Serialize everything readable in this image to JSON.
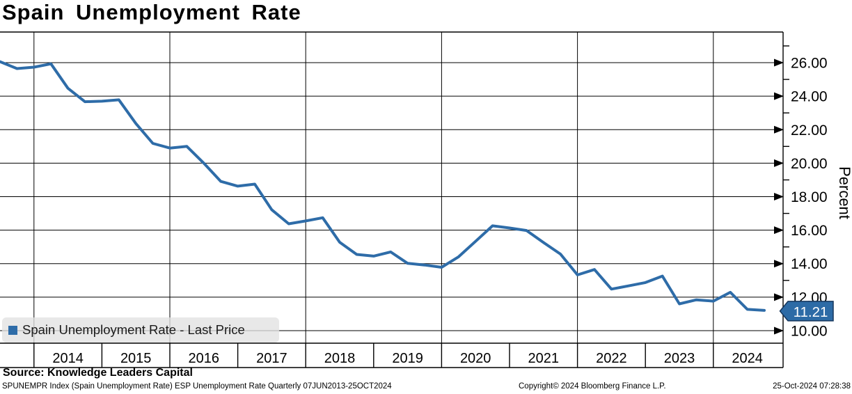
{
  "header": {
    "title": "Spain Unemployment Rate"
  },
  "legend": {
    "label": "Spain Unemployment Rate - Last Price",
    "swatch_color": "#2e6ca8"
  },
  "last_price": {
    "value": "11.21",
    "bg_color": "#2d6ba6",
    "border_color": "#16365c",
    "text_color": "#ffffff"
  },
  "y_axis": {
    "title": "Percent",
    "tick_labels": [
      "26.00",
      "24.00",
      "22.00",
      "20.00",
      "18.00",
      "16.00",
      "14.00",
      "12.00",
      "10.00"
    ]
  },
  "x_axis": {
    "tick_labels": [
      "2014",
      "2015",
      "2016",
      "2017",
      "2018",
      "2019",
      "2020",
      "2021",
      "2022",
      "2023",
      "2024"
    ]
  },
  "footer": {
    "source": "Source: Knowledge Leaders Capital",
    "meta_left": "SPUNEMPR Index (Spain Unemployment Rate) ESP Unemployment Rate  Quarterly 07JUN2013-25OCT2024",
    "meta_center": "Copyright© 2024 Bloomberg Finance L.P.",
    "meta_right": "25-Oct-2024 07:28:38"
  },
  "chart_data": {
    "type": "line",
    "title": "Spain Unemployment Rate",
    "ylabel": "Percent",
    "frequency": "Quarterly",
    "x_range_label": "07JUN2013-25OCT2024",
    "ylim": [
      9.25,
      27.85
    ],
    "yticks": [
      10,
      12,
      14,
      16,
      18,
      20,
      22,
      24,
      26
    ],
    "xticks_years": [
      2014,
      2015,
      2016,
      2017,
      2018,
      2019,
      2020,
      2021,
      2022,
      2023,
      2024
    ],
    "grid": {
      "horizontal_every": 2,
      "vertical_every_years": 2
    },
    "legend_position": "bottom-left",
    "last_value": 11.21,
    "series": [
      {
        "name": "Spain Unemployment Rate - Last Price",
        "color": "#2e6ca8",
        "quarters": [
          "2013 Q2",
          "2013 Q3",
          "2013 Q4",
          "2014 Q1",
          "2014 Q2",
          "2014 Q3",
          "2014 Q4",
          "2015 Q1",
          "2015 Q2",
          "2015 Q3",
          "2015 Q4",
          "2016 Q1",
          "2016 Q2",
          "2016 Q3",
          "2016 Q4",
          "2017 Q1",
          "2017 Q2",
          "2017 Q3",
          "2017 Q4",
          "2018 Q1",
          "2018 Q2",
          "2018 Q3",
          "2018 Q4",
          "2019 Q1",
          "2019 Q2",
          "2019 Q3",
          "2019 Q4",
          "2020 Q1",
          "2020 Q2",
          "2020 Q3",
          "2020 Q4",
          "2021 Q1",
          "2021 Q2",
          "2021 Q3",
          "2021 Q4",
          "2022 Q1",
          "2022 Q2",
          "2022 Q3",
          "2022 Q4",
          "2023 Q1",
          "2023 Q2",
          "2023 Q3",
          "2023 Q4",
          "2024 Q1",
          "2024 Q2",
          "2024 Q3"
        ],
        "values": [
          26.06,
          25.65,
          25.73,
          25.93,
          24.47,
          23.67,
          23.7,
          23.78,
          22.37,
          21.18,
          20.9,
          21.0,
          20.0,
          18.91,
          18.63,
          18.75,
          17.22,
          16.38,
          16.55,
          16.74,
          15.28,
          14.55,
          14.45,
          14.7,
          14.02,
          13.92,
          13.78,
          14.41,
          15.33,
          16.26,
          16.13,
          15.98,
          15.26,
          14.57,
          13.33,
          13.65,
          12.48,
          12.67,
          12.87,
          13.26,
          11.6,
          11.84,
          11.76,
          12.29,
          11.27,
          11.21
        ]
      }
    ]
  }
}
